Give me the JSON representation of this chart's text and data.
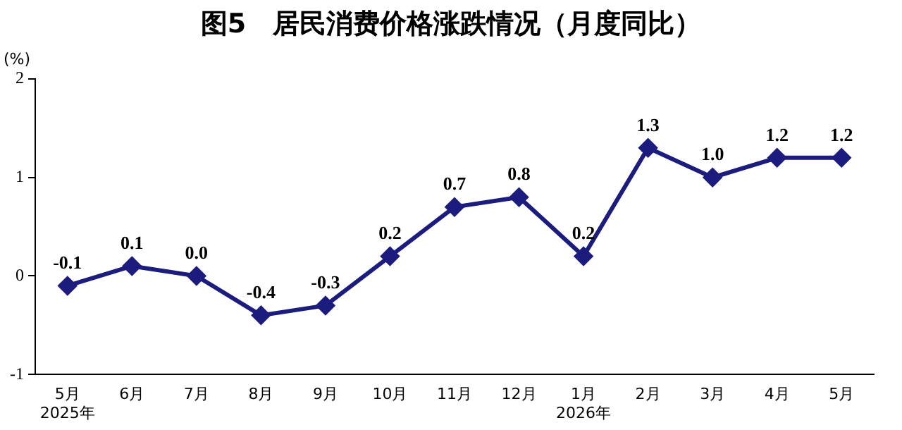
{
  "chart_data": {
    "type": "line",
    "title": "图5　居民消费价格涨跌情况（月度同比）",
    "ylabel": "(%)",
    "categories": [
      "5月\n2025年",
      "6月",
      "7月",
      "8月",
      "9月",
      "10月",
      "11月",
      "12月",
      "1月\n2026年",
      "2月",
      "3月",
      "4月",
      "5月"
    ],
    "series": [
      {
        "color": "#1c1c7e",
        "values": [
          -0.1,
          0.1,
          0.0,
          -0.4,
          -0.3,
          0.2,
          0.7,
          0.8,
          0.2,
          1.3,
          1.0,
          1.2,
          1.2
        ],
        "value_labels": [
          "-0.1",
          "0.1",
          "0.0",
          "-0.4",
          "-0.3",
          "0.2",
          "0.7",
          "0.8",
          "0.2",
          "1.3",
          "1.0",
          "1.2",
          "1.2"
        ]
      }
    ],
    "ylim": [
      -1,
      2
    ],
    "yticks": [
      -1,
      0,
      1,
      2
    ],
    "grid": false,
    "legend": false,
    "marker": "diamond",
    "line_style": "solid"
  }
}
